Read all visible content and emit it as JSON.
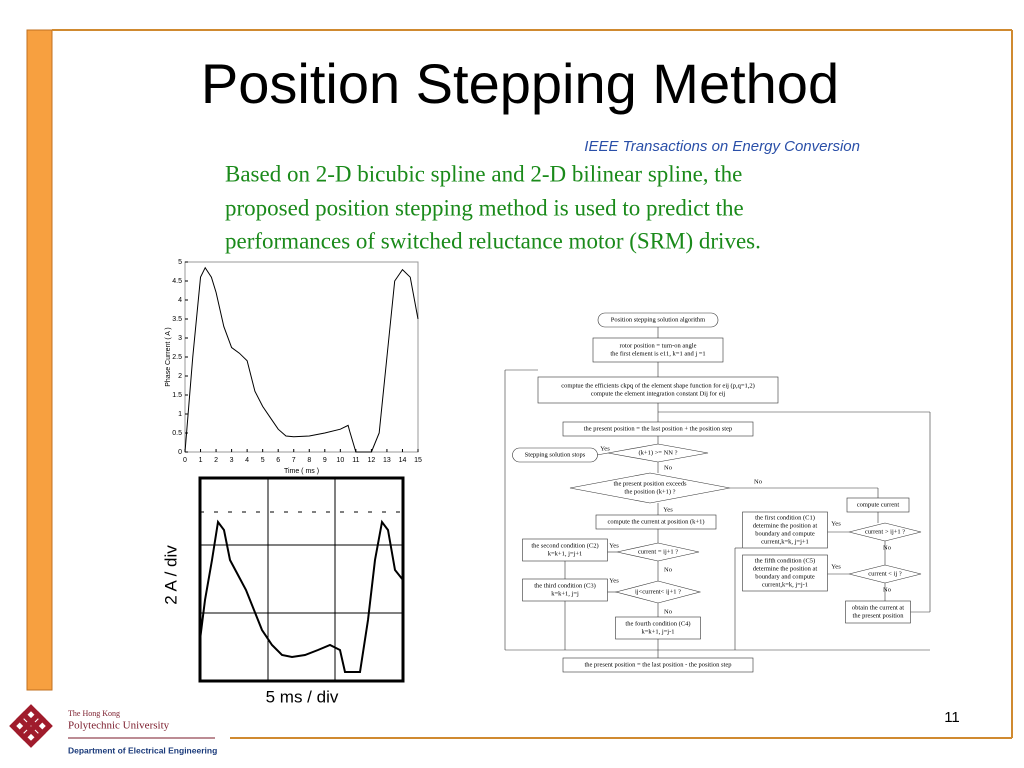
{
  "slide": {
    "title": "Position Stepping Method",
    "source": "IEEE Transactions on Energy Conversion",
    "body": [
      "Based on  2-D bicubic spline and 2-D bilinear spline, the",
      "proposed position stepping method is used to predict the",
      "performances of switched reluctance motor (SRM) drives."
    ],
    "page_number": "11"
  },
  "chart_data": {
    "type": "line",
    "xlabel": "Time ( ms )",
    "ylabel": "Phase Current ( A )",
    "x": [
      0,
      0.5,
      1,
      1.3,
      1.7,
      2,
      2.5,
      3,
      3.5,
      4,
      4.5,
      5,
      5.5,
      6,
      6.5,
      7,
      8,
      9,
      10,
      10.5,
      10.6,
      11,
      12,
      12.5,
      13,
      13.5,
      14,
      14.5,
      15
    ],
    "values": [
      0,
      2.5,
      4.6,
      4.85,
      4.6,
      4.2,
      3.3,
      2.75,
      2.6,
      2.4,
      1.6,
      1.2,
      0.9,
      0.6,
      0.42,
      0.4,
      0.42,
      0.5,
      0.6,
      0.7,
      0.55,
      0,
      0,
      0.5,
      2.5,
      4.5,
      4.8,
      4.6,
      3.5
    ],
    "color": "#000000",
    "xlim": [
      0,
      15
    ],
    "xticks": [
      0,
      1,
      2,
      3,
      4,
      5,
      6,
      7,
      8,
      9,
      10,
      11,
      12,
      13,
      14,
      15
    ],
    "ylim": [
      0,
      5
    ],
    "yticks": [
      0,
      0.5,
      1,
      1.5,
      2,
      2.5,
      3,
      3.5,
      4,
      4.5,
      5
    ]
  },
  "scope": {
    "ylabel": "2 A / div",
    "xlabel": "5 ms / div"
  },
  "flowchart": {
    "nodes": [
      [
        "Position stepping solution algorithm"
      ],
      [
        "rotor position = turn-on angle",
        "the first element is e11, k=1 and j =1"
      ],
      [
        "comptue the efficients ckpq of the element shape function for eij (p,q=1,2)",
        "compute the element integration constant Dij for eij"
      ],
      [
        "the present position = the last position + the position step"
      ],
      [
        "Stepping solution stops"
      ],
      [
        "(k+1) >= NN ?"
      ],
      [
        "the present position exceeds",
        "the position (k+1) ?"
      ],
      [
        "compute the current at position (k+1)"
      ],
      [
        "the first condition (C1)",
        "determine the position at",
        "boundary and compute",
        "current,k=k, j=j+1"
      ],
      [
        "compute current"
      ],
      [
        "current > ij+1 ?"
      ],
      [
        "the second condition (C2)",
        "k=k+1, j=j+1"
      ],
      [
        "current = ij+1 ?"
      ],
      [
        "the fifth condition (C5)",
        "determine the position at",
        "boundary and compute",
        "current,k=k, j=j-1"
      ],
      [
        "current < ij ?"
      ],
      [
        "the third condition (C3)",
        "k=k+1, j=j"
      ],
      [
        "ij<current< ij+1 ?"
      ],
      [
        "obtain the current at",
        "the present position"
      ],
      [
        "the fourth condition (C4)",
        "k=k+1, j=j-1"
      ],
      [
        "the present position = the last position - the position step"
      ]
    ],
    "labels": [
      "Yes",
      "No",
      "No",
      "Yes",
      "Yes",
      "No",
      "Yes",
      "No",
      "Yes",
      "No",
      "Yes",
      "No"
    ]
  },
  "footer": {
    "university_line1": "The Hong Kong",
    "university_line2": "Polytechnic University",
    "department": "Department of Electrical Engineering"
  }
}
